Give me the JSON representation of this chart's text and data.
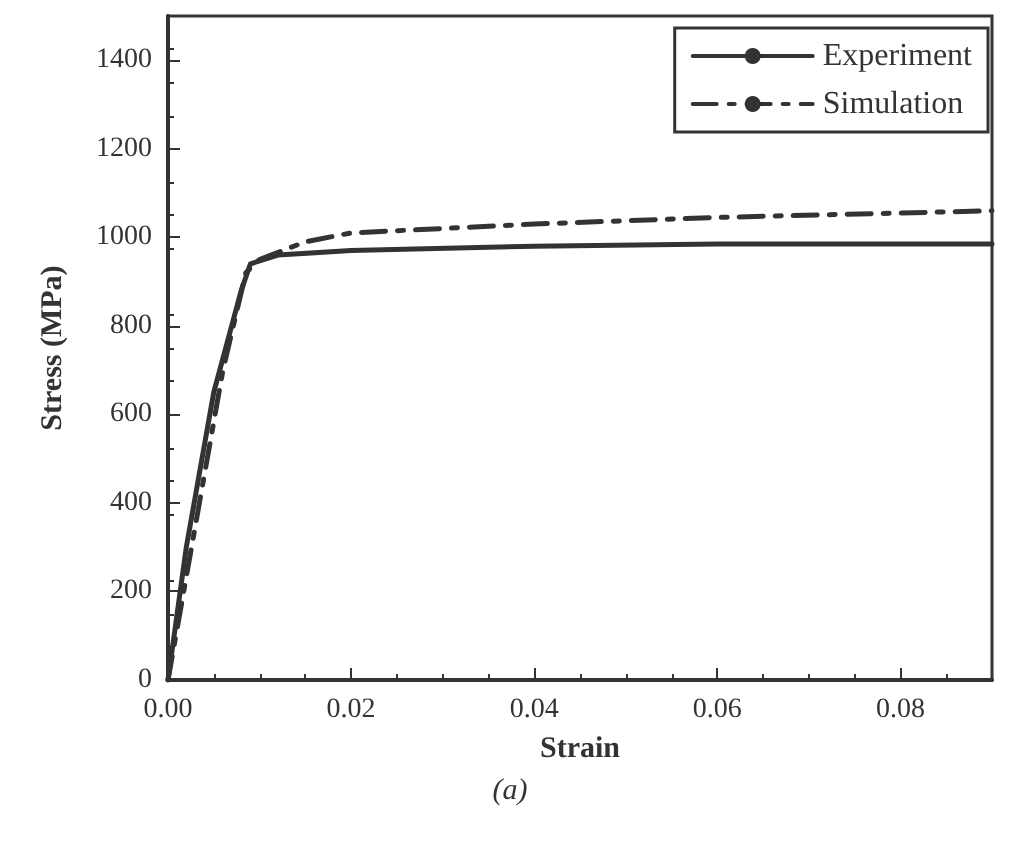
{
  "chart_data": {
    "type": "line",
    "xlabel": "Strain",
    "ylabel": "Stress (MPa)",
    "annotations": [
      "(a)"
    ],
    "xlim": [
      0,
      0.09
    ],
    "xticks": [
      {
        "value": 0,
        "label": "0.00"
      },
      {
        "value": 0.02,
        "label": "0.02"
      },
      {
        "value": 0.04,
        "label": "0.04"
      },
      {
        "value": 0.06,
        "label": "0.06"
      },
      {
        "value": 0.08,
        "label": "0.08"
      }
    ],
    "ylim": [
      0,
      1500
    ],
    "yticks": [
      0,
      200,
      400,
      600,
      800,
      1000,
      1200,
      1400
    ],
    "grid": false,
    "legend": "top right",
    "marker": "none",
    "series": [
      {
        "name": "Experiment",
        "color": "#333333",
        "line_style": "solid",
        "x": [
          0,
          0.002,
          0.005,
          0.008,
          0.009,
          0.012,
          0.02,
          0.04,
          0.06,
          0.09
        ],
        "values": [
          0,
          300,
          650,
          880,
          940,
          960,
          970,
          980,
          985,
          985
        ]
      },
      {
        "name": "Simulation",
        "color": "#333333",
        "line_style": "dashed",
        "x": [
          0,
          0.003,
          0.006,
          0.0085,
          0.01,
          0.015,
          0.02,
          0.04,
          0.06,
          0.09
        ],
        "values": [
          0,
          350,
          700,
          920,
          950,
          990,
          1010,
          1030,
          1045,
          1060
        ]
      }
    ]
  }
}
